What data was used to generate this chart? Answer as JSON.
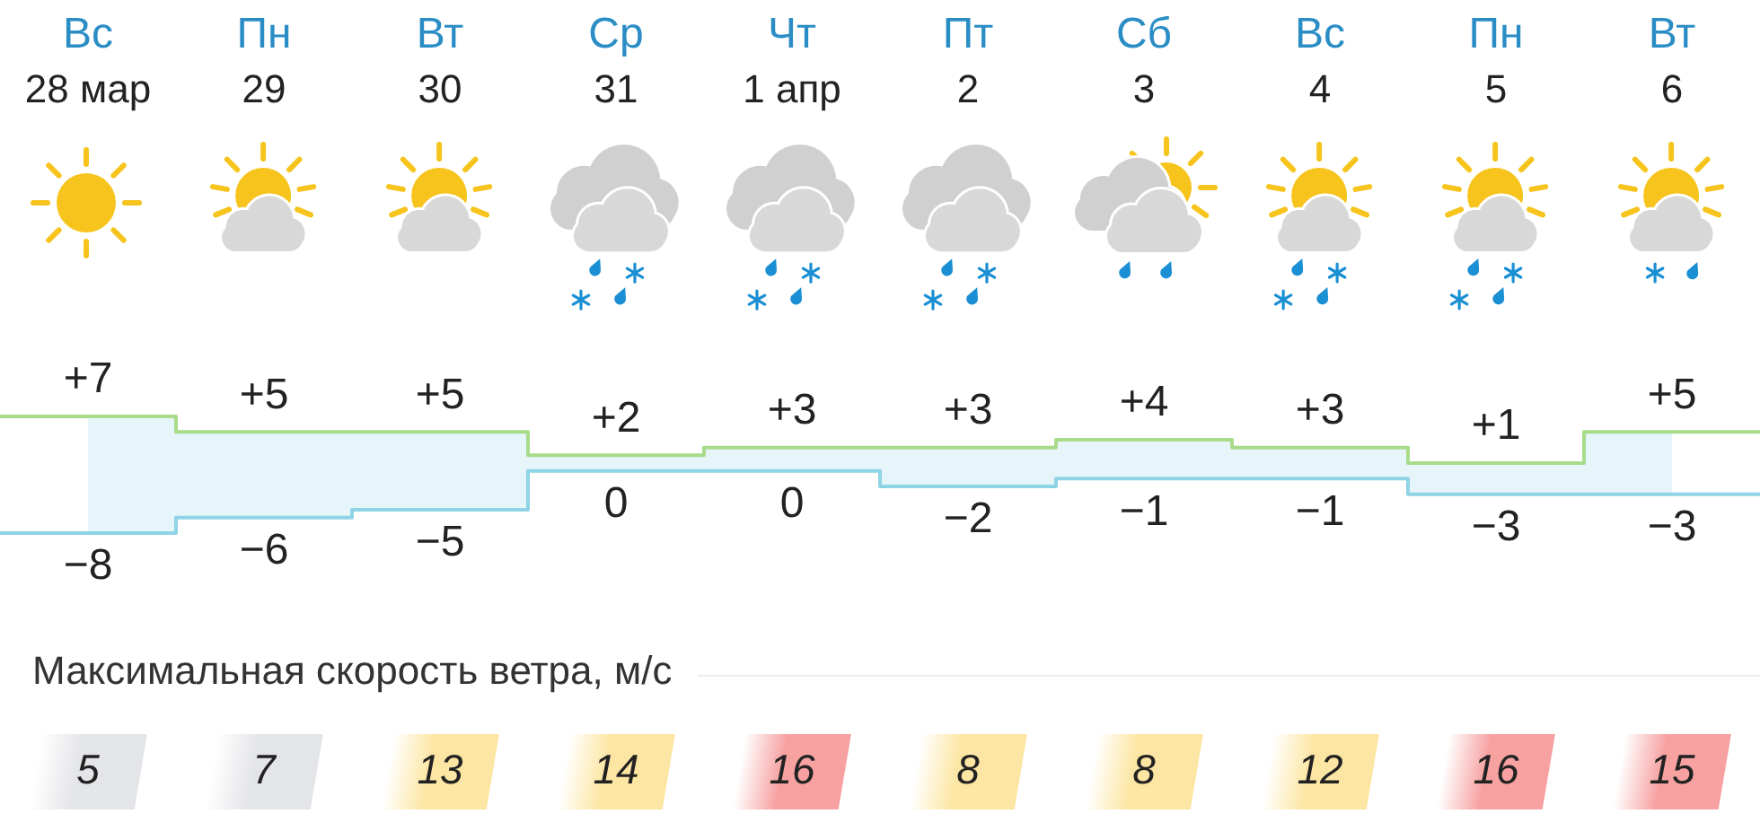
{
  "chart_data": [
    {
      "type": "step",
      "categories": [
        "Вс\n28 мар",
        "Пн\n29",
        "Вт\n30",
        "Ср\n31",
        "Чт\n1 апр",
        "Пт\n2",
        "Сб\n3",
        "Вс\n4",
        "Пн\n5",
        "Вт\n6"
      ],
      "series": [
        {
          "color": "#a9dc8a",
          "values": [
            7,
            5,
            5,
            2,
            3,
            3,
            4,
            3,
            1,
            5
          ],
          "value_labels": [
            "+7",
            "+5",
            "+5",
            "+2",
            "+3",
            "+3",
            "+4",
            "+3",
            "+1",
            "+5"
          ]
        },
        {
          "color": "#8ed3e6",
          "values": [
            -8,
            -6,
            -5,
            0,
            0,
            -2,
            -1,
            -1,
            -3,
            -3
          ],
          "value_labels": [
            "−8",
            "−6",
            "−5",
            "0",
            "0",
            "−2",
            "−1",
            "−1",
            "−3",
            "−3"
          ],
          "lower": [
            -8,
            -6,
            -5,
            0,
            0,
            -2,
            -1,
            -1,
            -3,
            -3
          ],
          "upper": [
            7,
            5,
            5,
            2,
            3,
            3,
            4,
            3,
            1,
            5
          ]
        }
      ],
      "marker": "none",
      "tick_labels": "x"
    },
    {
      "type": "heatmap",
      "title": "Максимальная скорость ветра, м/с",
      "categories": [
        null,
        null,
        null,
        null,
        null,
        null,
        null,
        null,
        null,
        null
      ],
      "y_categories": [
        null
      ],
      "cells": [
        [
          5,
          7,
          13,
          14,
          16,
          8,
          8,
          12,
          16,
          15
        ]
      ],
      "colors": [
        "#e4e5e8",
        "#e4e5e8",
        "#fde6a3",
        "#fde6a3",
        "#f7a1a1",
        "#fde6a3",
        "#fde6a3",
        "#fde6a3",
        "#f7a1a1",
        "#f7a1a1"
      ],
      "data_labels": true
    }
  ]
}
